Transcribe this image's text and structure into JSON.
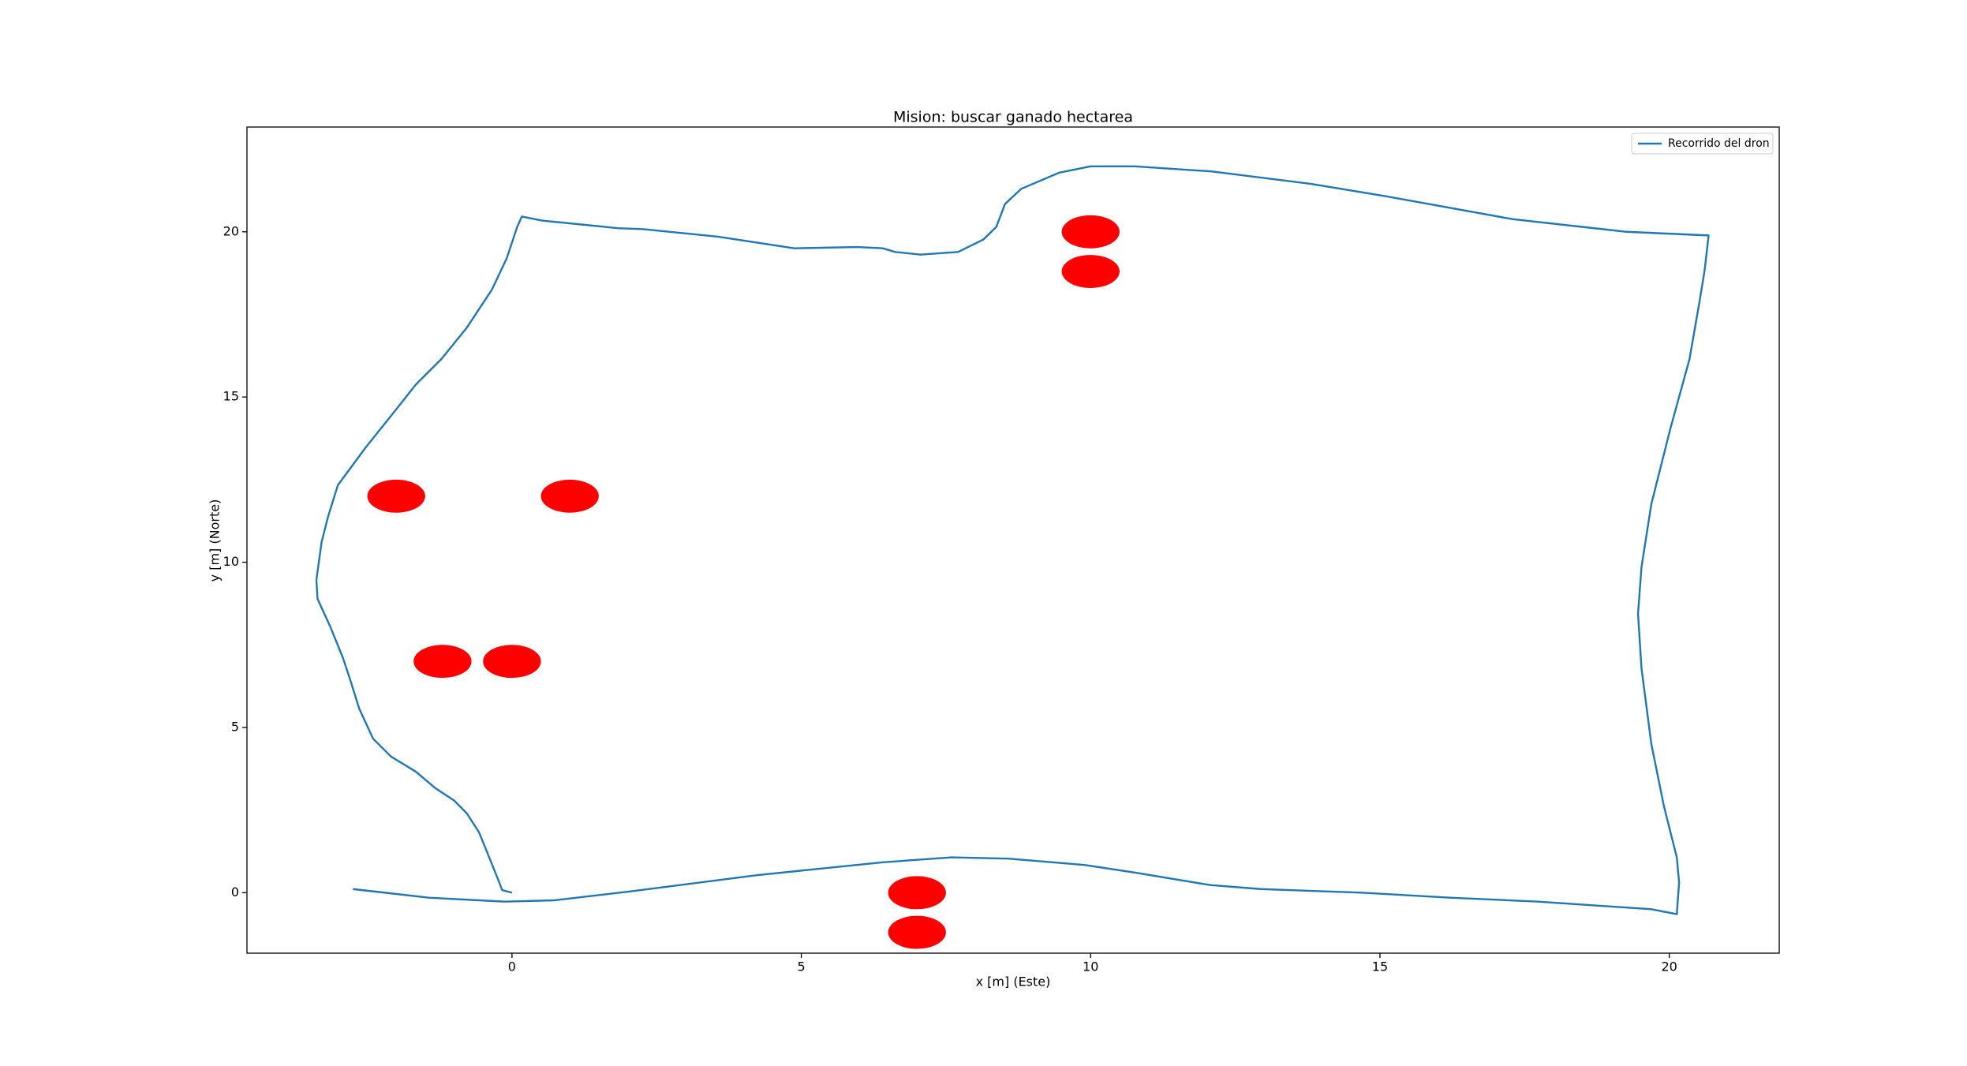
{
  "chart_data": {
    "type": "line",
    "title": "Mision: buscar ganado hectarea",
    "xlabel": "x [m] (Este)",
    "ylabel": "y [m] (Norte)",
    "xlim": [
      -4.58,
      21.9
    ],
    "ylim": [
      -1.83,
      23.17
    ],
    "xticks": [
      0,
      5,
      10,
      15,
      20
    ],
    "yticks": [
      0,
      5,
      10,
      15,
      20
    ],
    "legend": "upper right",
    "series": [
      {
        "name": "Recorrido del dron",
        "color": "#1f77b4",
        "x": [
          0,
          -0.17,
          -0.22,
          -0.35,
          -0.57,
          -0.78,
          -1.0,
          -1.33,
          -1.66,
          -2.09,
          -2.4,
          -2.64,
          -2.79,
          -2.92,
          -3.14,
          -3.36,
          -3.38,
          -3.29,
          -3.18,
          -3.01,
          -2.53,
          -2.09,
          -1.66,
          -1.22,
          -0.78,
          -0.35,
          -0.09,
          0.09,
          0.17,
          0.52,
          1.83,
          2.27,
          3.57,
          4.88,
          5.97,
          6.41,
          6.62,
          7.06,
          7.71,
          8.15,
          8.37,
          8.52,
          8.8,
          9.46,
          10.0,
          10.76,
          12.07,
          13.81,
          15.12,
          17.3,
          19.26,
          20.68,
          20.61,
          20.52,
          20.35,
          20.02,
          19.69,
          19.52,
          19.46,
          19.52,
          19.69,
          19.91,
          20.13,
          20.17,
          20.13,
          19.69,
          17.73,
          16.21,
          14.68,
          12.94,
          12.07,
          10.76,
          9.89,
          8.58,
          7.6,
          6.41,
          4.23,
          2.05,
          0.74,
          -0.13,
          -1.44,
          -2.75
        ],
        "values": [
          0,
          0.08,
          0.31,
          0.88,
          1.83,
          2.4,
          2.79,
          3.17,
          3.66,
          4.12,
          4.66,
          5.57,
          6.41,
          7.1,
          8.05,
          8.89,
          9.47,
          10.61,
          11.37,
          12.33,
          13.47,
          14.43,
          15.38,
          16.15,
          17.1,
          18.24,
          19.2,
          20.15,
          20.46,
          20.34,
          20.11,
          20.08,
          19.85,
          19.5,
          19.54,
          19.5,
          19.39,
          19.31,
          19.39,
          19.77,
          20.15,
          20.84,
          21.3,
          21.79,
          21.98,
          21.98,
          21.83,
          21.45,
          21.07,
          20.38,
          20.0,
          19.89,
          18.82,
          17.86,
          16.15,
          14.05,
          11.76,
          9.85,
          8.44,
          6.79,
          4.5,
          2.6,
          1.07,
          0.31,
          -0.65,
          -0.5,
          -0.27,
          -0.15,
          0,
          0.11,
          0.23,
          0.61,
          0.84,
          1.03,
          1.07,
          0.92,
          0.53,
          0.04,
          -0.23,
          -0.27,
          -0.15,
          0.11
        ]
      }
    ],
    "points": {
      "color": "#ff0000",
      "x": [
        -2,
        1,
        -1.2,
        0,
        10,
        10,
        7,
        7
      ],
      "values": [
        12,
        12,
        7,
        7,
        20,
        18.8,
        0,
        -1.2
      ]
    }
  }
}
